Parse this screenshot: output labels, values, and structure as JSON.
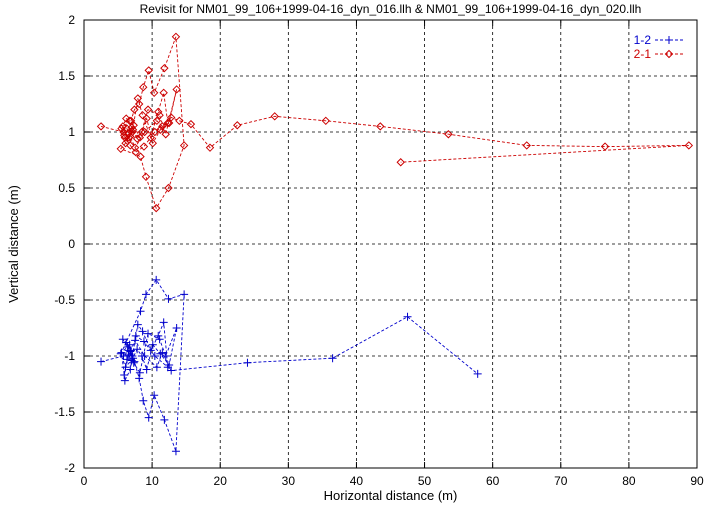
{
  "chart_data": {
    "type": "scatter",
    "title": "Revisit for NM01_99_106+1999-04-16_dyn_016.llh & NM01_99_106+1999-04-16_dyn_020.llh",
    "xlabel": "Horizontal distance (m)",
    "ylabel": "Vertical distance (m)",
    "xlim": [
      0,
      90
    ],
    "ylim": [
      -2,
      2
    ],
    "xticks": [
      0,
      10,
      20,
      30,
      40,
      50,
      60,
      70,
      80,
      90
    ],
    "yticks": [
      -2,
      -1.5,
      -1,
      -0.5,
      0,
      0.5,
      1,
      1.5,
      2
    ],
    "grid": true,
    "legend_position": "top-right",
    "series": [
      {
        "name": "1-2",
        "color": "#0000cc",
        "marker": "plus",
        "line": "dashed",
        "x": [
          2.5,
          5.8,
          6.6,
          7.2,
          6.1,
          5.4,
          8.3,
          9.1,
          10.6,
          12.4,
          14.7,
          13.5,
          11.8,
          10.3,
          9.5,
          8.7,
          8.1,
          7.4,
          6.9,
          6.2,
          5.7,
          6.4,
          7.1,
          7.9,
          8.6,
          9.8,
          10.9,
          11.7,
          12.3,
          10.4,
          8.8,
          7.6,
          6.8,
          6.0,
          5.5,
          6.7,
          7.3,
          8.2,
          9.4,
          11.1,
          12.0,
          13.6,
          12.5,
          11.2,
          10.1,
          9.2,
          8.5,
          7.8,
          7.0,
          6.5,
          5.9,
          6.3,
          6.8,
          7.5,
          8.9,
          10.7,
          11.5,
          12.8,
          24.0,
          36.5,
          47.5,
          57.8
        ],
        "y": [
          -1.05,
          -1.0,
          -0.95,
          -1.02,
          -1.1,
          -0.98,
          -0.6,
          -0.45,
          -0.32,
          -0.49,
          -0.45,
          -1.85,
          -1.57,
          -1.35,
          -1.55,
          -1.4,
          -1.2,
          -1.05,
          -0.95,
          -0.88,
          -0.85,
          -0.92,
          -1.0,
          -0.72,
          -0.78,
          -0.95,
          -0.82,
          -0.7,
          -1.1,
          -1.0,
          -0.87,
          -0.82,
          -1.12,
          -1.22,
          -0.97,
          -0.9,
          -1.06,
          -1.15,
          -0.8,
          -0.85,
          -1.0,
          -0.75,
          -1.08,
          -0.98,
          -0.9,
          -1.12,
          -1.0,
          -0.94,
          -1.04,
          -0.99,
          -1.17,
          -1.03,
          -0.96,
          -0.86,
          -1.0,
          -1.1,
          -0.97,
          -1.13,
          -1.06,
          -1.02,
          -0.65,
          -1.16
        ]
      },
      {
        "name": "2-1",
        "color": "#cc0000",
        "marker": "diamond",
        "line": "dashed",
        "x": [
          2.5,
          5.8,
          6.6,
          7.2,
          6.1,
          5.4,
          8.3,
          9.1,
          10.6,
          12.4,
          14.7,
          13.5,
          11.8,
          10.3,
          9.5,
          8.7,
          8.1,
          7.4,
          6.9,
          6.2,
          5.7,
          6.4,
          7.1,
          7.9,
          8.6,
          9.8,
          10.9,
          11.7,
          12.3,
          10.4,
          8.8,
          7.6,
          6.8,
          6.0,
          5.5,
          6.7,
          7.3,
          8.2,
          9.4,
          11.1,
          12.0,
          13.6,
          12.5,
          11.2,
          10.1,
          9.2,
          8.5,
          7.8,
          7.0,
          6.5,
          5.9,
          6.3,
          6.8,
          7.5,
          8.9,
          10.7,
          11.5,
          12.8,
          14.0,
          15.7,
          18.5,
          22.5,
          28.0,
          35.5,
          43.5,
          53.5,
          65.0,
          76.5,
          88.8,
          46.5
        ],
        "y": [
          1.05,
          1.0,
          0.95,
          1.02,
          0.9,
          0.85,
          0.78,
          0.6,
          0.32,
          0.5,
          0.88,
          1.85,
          1.57,
          1.35,
          1.55,
          1.4,
          1.25,
          1.2,
          1.1,
          1.12,
          1.05,
          0.92,
          1.0,
          1.3,
          1.15,
          0.95,
          1.18,
          1.35,
          1.08,
          1.0,
          0.87,
          0.82,
          0.88,
          0.95,
          1.03,
          1.1,
          1.06,
          0.95,
          1.2,
          1.15,
          0.98,
          1.38,
          1.08,
          1.02,
          0.9,
          1.12,
          1.0,
          0.94,
          1.04,
          0.99,
          0.97,
          1.03,
          0.96,
          0.86,
          1.0,
          1.1,
          1.05,
          1.13,
          1.1,
          1.07,
          0.86,
          1.06,
          1.14,
          1.1,
          1.05,
          0.98,
          0.88,
          0.87,
          0.88,
          0.73
        ]
      }
    ]
  }
}
